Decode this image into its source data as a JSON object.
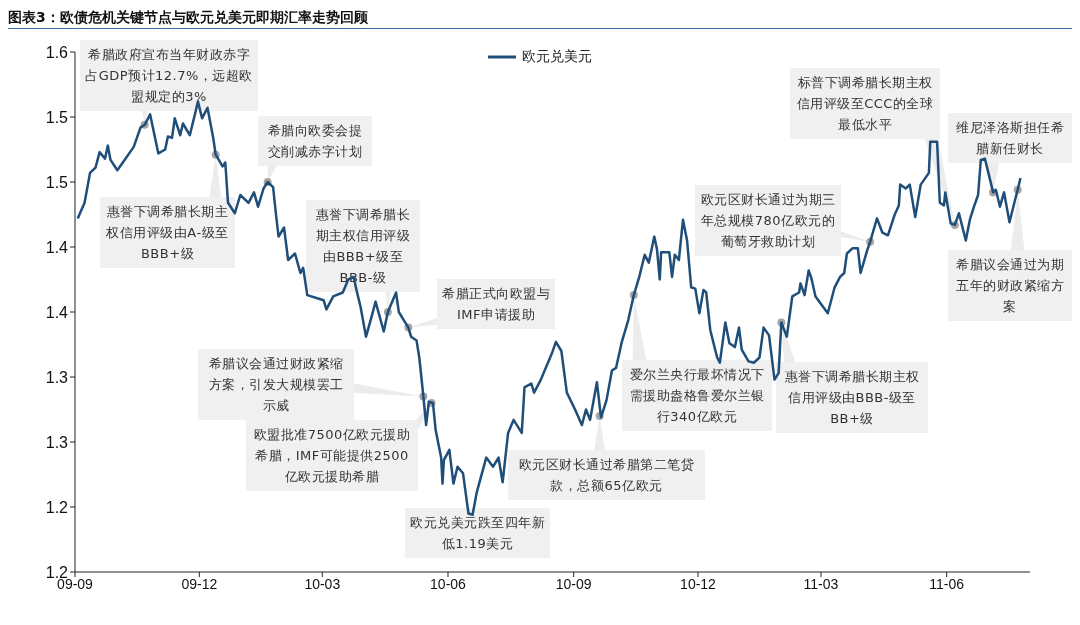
{
  "chart_data": {
    "type": "line",
    "title": "图表3：欧债危机关键节点与欧元兑美元即期汇率走势回顾",
    "legend": "top",
    "grid": false,
    "marker": "none",
    "line_style": "solid",
    "xlim": [
      "2009-09-01",
      "2011-08-01"
    ],
    "xticks": [
      {
        "value": "2009-09-01",
        "label": "09-09"
      },
      {
        "value": "2009-12-01",
        "label": "09-12"
      },
      {
        "value": "2010-03-01",
        "label": "10-03"
      },
      {
        "value": "2010-06-01",
        "label": "10-06"
      },
      {
        "value": "2010-09-01",
        "label": "10-09"
      },
      {
        "value": "2010-12-01",
        "label": "10-12"
      },
      {
        "value": "2011-03-01",
        "label": "11-03"
      },
      {
        "value": "2011-06-01",
        "label": "11-06"
      }
    ],
    "ylim": [
      1.15,
      1.55
    ],
    "yticks": [
      {
        "value": 1.15,
        "label": "1.2"
      },
      {
        "value": 1.2,
        "label": "1.2"
      },
      {
        "value": 1.25,
        "label": "1.3"
      },
      {
        "value": 1.3,
        "label": "1.3"
      },
      {
        "value": 1.35,
        "label": "1.4"
      },
      {
        "value": 1.4,
        "label": "1.4"
      },
      {
        "value": 1.45,
        "label": "1.5"
      },
      {
        "value": 1.5,
        "label": "1.5"
      },
      {
        "value": 1.55,
        "label": "1.6"
      }
    ],
    "series": [
      {
        "name": "欧元兑美元",
        "color": "#1f4e79",
        "x": [
          "2009-09-03",
          "2009-09-08",
          "2009-09-12",
          "2009-09-16",
          "2009-09-19",
          "2009-09-23",
          "2009-09-25",
          "2009-09-27",
          "2009-10-02",
          "2009-10-06",
          "2009-10-14",
          "2009-10-19",
          "2009-10-22",
          "2009-10-26",
          "2009-11-01",
          "2009-11-06",
          "2009-11-08",
          "2009-11-11",
          "2009-11-13",
          "2009-11-17",
          "2009-11-19",
          "2009-11-24",
          "2009-11-28",
          "2009-11-30",
          "2009-12-03",
          "2009-12-07",
          "2009-12-11",
          "2009-12-13",
          "2009-12-18",
          "2009-12-20",
          "2009-12-22",
          "2009-12-27",
          "2009-12-31",
          "2010-01-06",
          "2010-01-10",
          "2010-01-13",
          "2010-01-17",
          "2010-01-20",
          "2010-01-24",
          "2010-01-26",
          "2010-01-28",
          "2010-02-01",
          "2010-02-04",
          "2010-02-09",
          "2010-02-13",
          "2010-02-15",
          "2010-02-18",
          "2010-03-02",
          "2010-03-04",
          "2010-03-09",
          "2010-03-16",
          "2010-03-20",
          "2010-03-24",
          "2010-03-26",
          "2010-03-29",
          "2010-04-02",
          "2010-04-06",
          "2010-04-09",
          "2010-04-15",
          "2010-04-18",
          "2010-04-24",
          "2010-04-26",
          "2010-05-03",
          "2010-05-05",
          "2010-05-09",
          "2010-05-11",
          "2010-05-14",
          "2010-05-16",
          "2010-05-18",
          "2010-05-21",
          "2010-05-23",
          "2010-05-27",
          "2010-05-28",
          "2010-05-29",
          "2010-06-02",
          "2010-06-05",
          "2010-06-08",
          "2010-06-12",
          "2010-06-16",
          "2010-06-19",
          "2010-06-22",
          "2010-06-29",
          "2010-07-04",
          "2010-07-08",
          "2010-07-11",
          "2010-07-15",
          "2010-07-19",
          "2010-07-25",
          "2010-07-27",
          "2010-08-01",
          "2010-08-03",
          "2010-08-08",
          "2010-08-16",
          "2010-08-19",
          "2010-08-23",
          "2010-08-27",
          "2010-09-02",
          "2010-09-07",
          "2010-09-10",
          "2010-09-13",
          "2010-09-18",
          "2010-09-21",
          "2010-09-25",
          "2010-09-29",
          "2010-10-02",
          "2010-10-06",
          "2010-10-11",
          "2010-10-15",
          "2010-10-19",
          "2010-10-23",
          "2010-10-26",
          "2010-10-30",
          "2010-11-01",
          "2010-11-03",
          "2010-11-04",
          "2010-11-10",
          "2010-11-12",
          "2010-11-14",
          "2010-11-17",
          "2010-11-20",
          "2010-11-23",
          "2010-11-26",
          "2010-11-29",
          "2010-12-02",
          "2010-12-05",
          "2010-12-07",
          "2010-12-10",
          "2010-12-15",
          "2010-12-17",
          "2010-12-21",
          "2010-12-24",
          "2010-12-28",
          "2010-12-31",
          "2011-01-02",
          "2011-01-07",
          "2011-01-11",
          "2011-01-15",
          "2011-01-18",
          "2011-01-22",
          "2011-01-26",
          "2011-01-29",
          "2011-01-31",
          "2011-02-04",
          "2011-02-08",
          "2011-02-13",
          "2011-02-14",
          "2011-02-17",
          "2011-02-20",
          "2011-02-22",
          "2011-02-25",
          "2011-03-06",
          "2011-03-11",
          "2011-03-15",
          "2011-03-18",
          "2011-03-20",
          "2011-03-24",
          "2011-03-28",
          "2011-03-30",
          "2011-04-04",
          "2011-04-06",
          "2011-04-11",
          "2011-04-15",
          "2011-04-19",
          "2011-04-24",
          "2011-04-27",
          "2011-04-28",
          "2011-05-02",
          "2011-05-05",
          "2011-05-09",
          "2011-05-13",
          "2011-05-19",
          "2011-05-20",
          "2011-05-25",
          "2011-05-27",
          "2011-05-30",
          "2011-05-31",
          "2011-06-04",
          "2011-06-07",
          "2011-06-10",
          "2011-06-15",
          "2011-06-18",
          "2011-06-21",
          "2011-06-24",
          "2011-06-26",
          "2011-06-29",
          "2011-07-05",
          "2011-07-07",
          "2011-07-10",
          "2011-07-13",
          "2011-07-17",
          "2011-07-21",
          "2011-07-23",
          "2011-07-25"
        ],
        "values": [
          1.422,
          1.434,
          1.457,
          1.461,
          1.473,
          1.468,
          1.478,
          1.467,
          1.459,
          1.465,
          1.477,
          1.492,
          1.494,
          1.502,
          1.472,
          1.475,
          1.485,
          1.484,
          1.499,
          1.486,
          1.495,
          1.486,
          1.503,
          1.512,
          1.499,
          1.507,
          1.485,
          1.471,
          1.462,
          1.465,
          1.434,
          1.426,
          1.44,
          1.434,
          1.442,
          1.431,
          1.445,
          1.45,
          1.446,
          1.426,
          1.408,
          1.415,
          1.39,
          1.395,
          1.38,
          1.384,
          1.363,
          1.359,
          1.352,
          1.362,
          1.365,
          1.375,
          1.377,
          1.367,
          1.354,
          1.331,
          1.346,
          1.358,
          1.335,
          1.35,
          1.365,
          1.35,
          1.338,
          1.331,
          1.328,
          1.315,
          1.285,
          1.263,
          1.281,
          1.28,
          1.259,
          1.238,
          1.218,
          1.236,
          1.244,
          1.218,
          1.231,
          1.226,
          1.195,
          1.194,
          1.211,
          1.238,
          1.231,
          1.238,
          1.219,
          1.257,
          1.267,
          1.257,
          1.292,
          1.295,
          1.288,
          1.298,
          1.318,
          1.327,
          1.32,
          1.288,
          1.275,
          1.263,
          1.275,
          1.267,
          1.296,
          1.269,
          1.282,
          1.305,
          1.307,
          1.326,
          1.344,
          1.363,
          1.377,
          1.394,
          1.388,
          1.408,
          1.398,
          1.375,
          1.396,
          1.396,
          1.377,
          1.394,
          1.39,
          1.421,
          1.405,
          1.369,
          1.368,
          1.349,
          1.367,
          1.365,
          1.336,
          1.315,
          1.311,
          1.342,
          1.326,
          1.323,
          1.338,
          1.321,
          1.312,
          1.311,
          1.315,
          1.338,
          1.332,
          1.298,
          1.303,
          1.342,
          1.331,
          1.362,
          1.365,
          1.372,
          1.363,
          1.382,
          1.376,
          1.362,
          1.349,
          1.369,
          1.377,
          1.38,
          1.395,
          1.399,
          1.399,
          1.38,
          1.398,
          1.404,
          1.422,
          1.411,
          1.409,
          1.425,
          1.432,
          1.448,
          1.445,
          1.448,
          1.423,
          1.448,
          1.457,
          1.481,
          1.481,
          1.434,
          1.432,
          1.442,
          1.418,
          1.417,
          1.426,
          1.405,
          1.421,
          1.431,
          1.44,
          1.467,
          1.468,
          1.442,
          1.444,
          1.431,
          1.442,
          1.419,
          1.436,
          1.444,
          1.453
        ]
      }
    ],
    "annotations": [
      {
        "text": "希腊政府宣布当年财政赤字占GDP预计12.7%，远超欧盟规定的3%",
        "x": "2009-10-22",
        "y": 1.494
      },
      {
        "text": "惠誉下调希腊长期主权信用评级由A-级至BBB+级",
        "x": "2009-12-13",
        "y": 1.471
      },
      {
        "text": "希腊向欧委会提交削减赤字计划",
        "x": "2010-01-20",
        "y": 1.45
      },
      {
        "text": "惠誉下调希腊长期主权信用评级由BBB+级至BBB-级",
        "x": "2010-04-18",
        "y": 1.35
      },
      {
        "text": "希腊正式向欧盟与IMF申请援助",
        "x": "2010-05-03",
        "y": 1.338
      },
      {
        "text": "希腊议会通过财政紧缩方案，引发大规模罢工示威",
        "x": "2010-05-14",
        "y": 1.285
      },
      {
        "text": "欧盟批准7500亿欧元援助希腊，IMF可能提供2500亿欧元援助希腊",
        "x": "2010-05-20",
        "y": 1.28
      },
      {
        "text": "欧元兑美元跌至四年新低1.19美元",
        "x": "2010-06-17",
        "y": 1.19
      },
      {
        "text": "欧元区财长通过希腊第二笔贷款，总额65亿欧元",
        "x": "2010-09-20",
        "y": 1.27
      },
      {
        "text": "爱尔兰央行最坏情况下需援助盎格鲁爱尔兰银行340亿欧元",
        "x": "2010-10-15",
        "y": 1.363
      },
      {
        "text": "惠誉下调希腊长期主权信用评级由BBB-级至BB+级",
        "x": "2011-01-31",
        "y": 1.342
      },
      {
        "text": "欧元区财长通过为期三年总规模780亿欧元的葡萄牙救助计划",
        "x": "2011-04-06",
        "y": 1.404
      },
      {
        "text": "标普下调希腊长期主权信用评级至CCC的全球最低水平",
        "x": "2011-06-07",
        "y": 1.417
      },
      {
        "text": "维尼泽洛斯担任希腊新任财长",
        "x": "2011-07-05",
        "y": 1.442
      },
      {
        "text": "希腊议会通过为期五年的财政紧缩方案",
        "x": "2011-07-23",
        "y": 1.444
      }
    ]
  }
}
